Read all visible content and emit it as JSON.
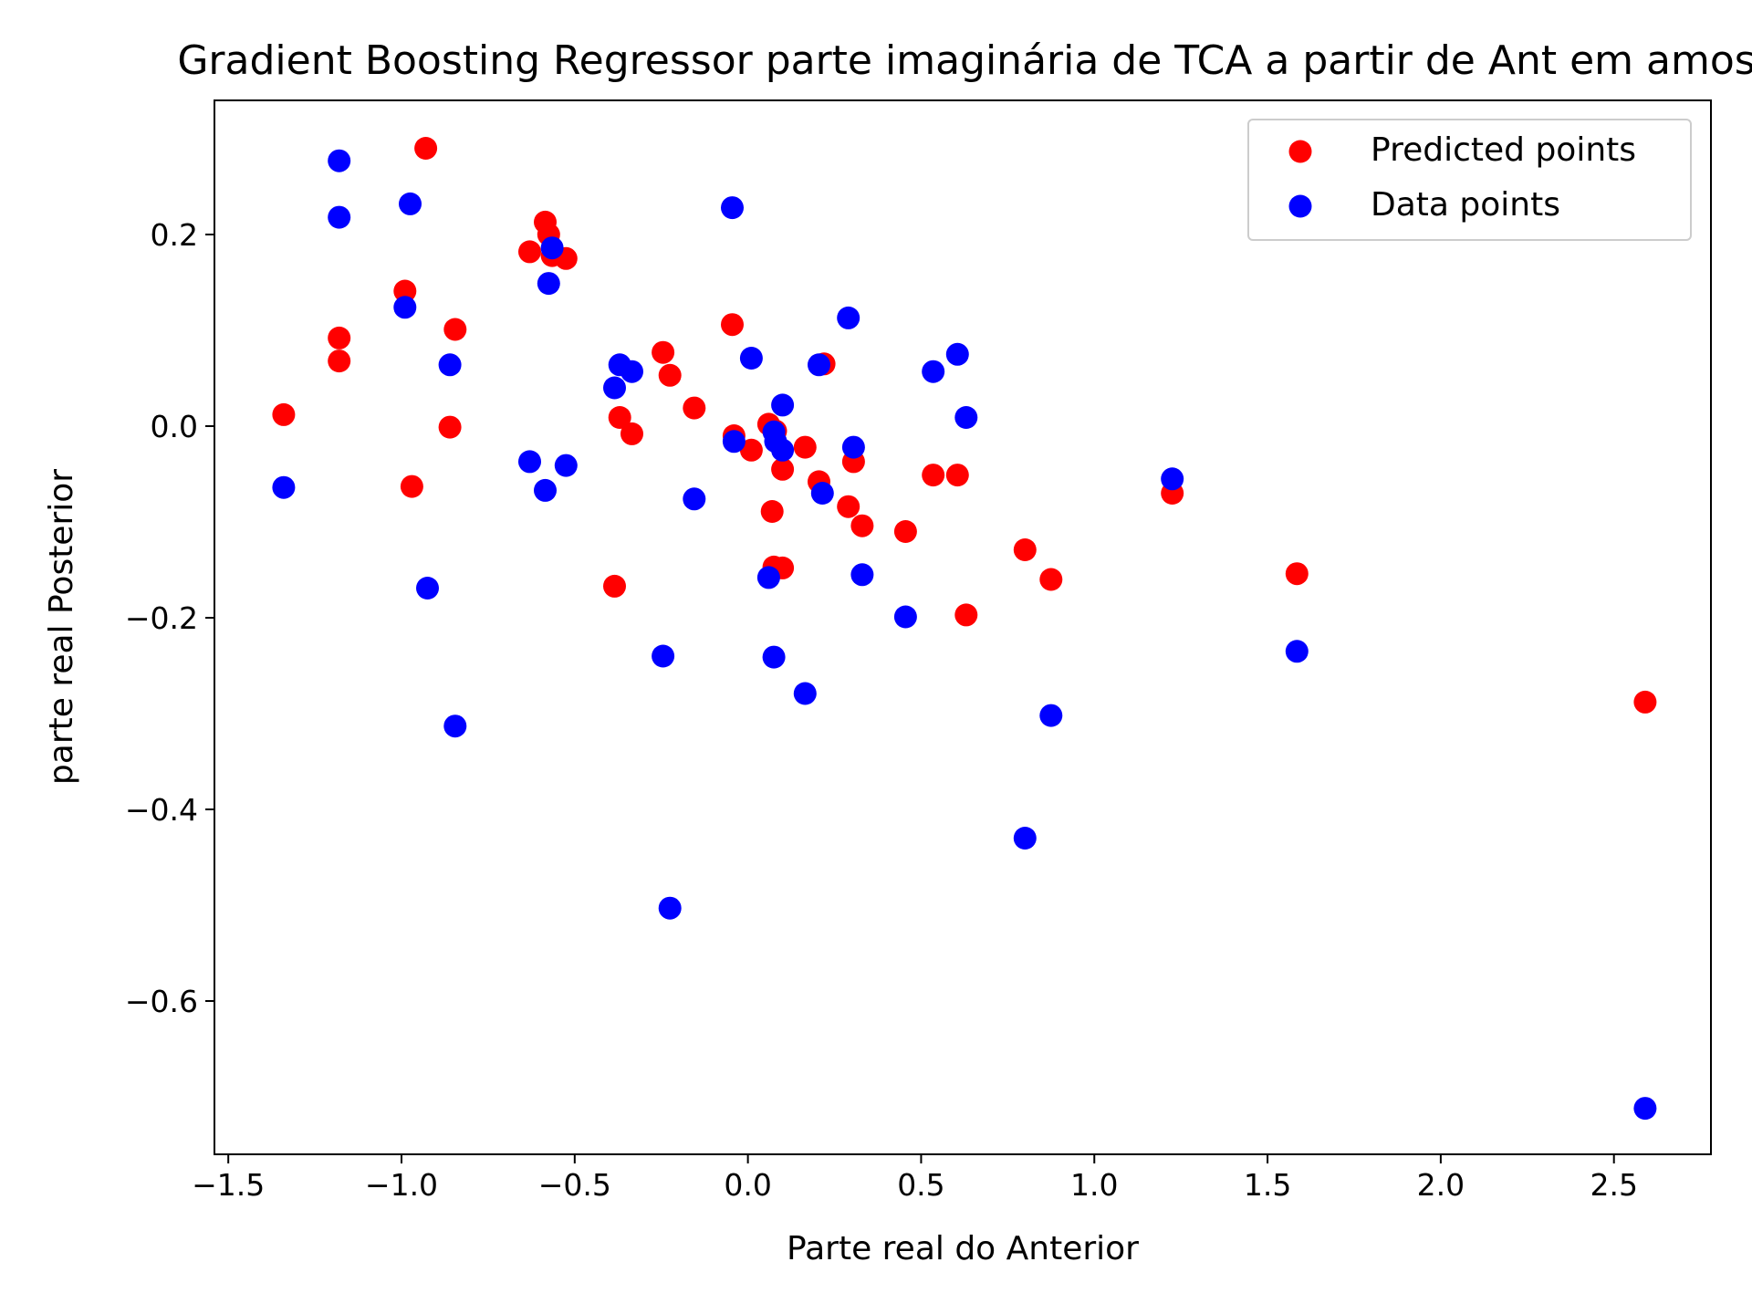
{
  "chart_data": {
    "type": "scatter",
    "title": "Gradient Boosting Regressor parte imaginária de TCA a partir de Ant em amos",
    "xlabel": "Parte real do Anterior",
    "ylabel": "parte real Posterior",
    "xlim": [
      -1.54,
      2.78
    ],
    "ylim": [
      -0.76,
      0.34
    ],
    "xticks": [
      -1.5,
      -1.0,
      -0.5,
      0.0,
      0.5,
      1.0,
      1.5,
      2.0,
      2.5
    ],
    "xtick_labels": [
      "−1.5",
      "−1.0",
      "−0.5",
      "0.0",
      "0.5",
      "1.0",
      "1.5",
      "2.0",
      "2.5"
    ],
    "yticks": [
      0.2,
      0.0,
      -0.2,
      -0.4,
      -0.6
    ],
    "ytick_labels": [
      "0.2",
      "0.0",
      "−0.2",
      "−0.4",
      "−0.6"
    ],
    "grid": false,
    "legend_position": "top-right",
    "series": [
      {
        "name": "Predicted points",
        "color": "#ff0000",
        "points": [
          [
            -1.34,
            0.012
          ],
          [
            -1.18,
            0.092
          ],
          [
            -1.18,
            0.068
          ],
          [
            -0.99,
            0.141
          ],
          [
            -0.97,
            -0.063
          ],
          [
            -0.93,
            0.29
          ],
          [
            -0.86,
            -0.001
          ],
          [
            -0.845,
            0.101
          ],
          [
            -0.63,
            0.182
          ],
          [
            -0.585,
            0.213
          ],
          [
            -0.575,
            0.2
          ],
          [
            -0.565,
            0.178
          ],
          [
            -0.525,
            0.175
          ],
          [
            -0.385,
            -0.167
          ],
          [
            -0.37,
            0.009
          ],
          [
            -0.335,
            -0.008
          ],
          [
            -0.245,
            0.077
          ],
          [
            -0.225,
            0.053
          ],
          [
            -0.155,
            0.019
          ],
          [
            -0.045,
            0.106
          ],
          [
            -0.04,
            -0.01
          ],
          [
            0.01,
            -0.025
          ],
          [
            0.06,
            0.002
          ],
          [
            0.07,
            -0.089
          ],
          [
            0.075,
            -0.147
          ],
          [
            0.08,
            -0.005
          ],
          [
            0.1,
            -0.045
          ],
          [
            0.1,
            -0.148
          ],
          [
            0.165,
            -0.022
          ],
          [
            0.205,
            -0.058
          ],
          [
            0.22,
            0.065
          ],
          [
            0.29,
            -0.084
          ],
          [
            0.305,
            -0.037
          ],
          [
            0.33,
            -0.104
          ],
          [
            0.455,
            -0.11
          ],
          [
            0.535,
            -0.051
          ],
          [
            0.605,
            -0.051
          ],
          [
            0.63,
            -0.197
          ],
          [
            0.8,
            -0.129
          ],
          [
            0.875,
            -0.16
          ],
          [
            1.225,
            -0.07
          ],
          [
            1.585,
            -0.154
          ],
          [
            2.59,
            -0.288
          ]
        ]
      },
      {
        "name": "Data points",
        "color": "#0000ff",
        "points": [
          [
            -1.34,
            -0.064
          ],
          [
            -1.18,
            0.277
          ],
          [
            -1.18,
            0.218
          ],
          [
            -0.99,
            0.124
          ],
          [
            -0.975,
            0.232
          ],
          [
            -0.925,
            -0.169
          ],
          [
            -0.86,
            0.064
          ],
          [
            -0.845,
            -0.313
          ],
          [
            -0.63,
            -0.037
          ],
          [
            -0.585,
            -0.067
          ],
          [
            -0.575,
            0.149
          ],
          [
            -0.565,
            0.186
          ],
          [
            -0.525,
            -0.041
          ],
          [
            -0.385,
            0.04
          ],
          [
            -0.37,
            0.064
          ],
          [
            -0.335,
            0.057
          ],
          [
            -0.245,
            -0.24
          ],
          [
            -0.225,
            -0.503
          ],
          [
            -0.155,
            -0.076
          ],
          [
            -0.045,
            0.228
          ],
          [
            -0.04,
            -0.016
          ],
          [
            0.01,
            0.071
          ],
          [
            0.06,
            -0.158
          ],
          [
            0.075,
            -0.241
          ],
          [
            0.075,
            -0.006
          ],
          [
            0.08,
            -0.016
          ],
          [
            0.1,
            0.022
          ],
          [
            0.1,
            -0.025
          ],
          [
            0.165,
            -0.279
          ],
          [
            0.205,
            0.064
          ],
          [
            0.215,
            -0.07
          ],
          [
            0.29,
            0.113
          ],
          [
            0.305,
            -0.022
          ],
          [
            0.33,
            -0.155
          ],
          [
            0.455,
            -0.199
          ],
          [
            0.535,
            0.057
          ],
          [
            0.605,
            0.075
          ],
          [
            0.63,
            0.009
          ],
          [
            0.8,
            -0.43
          ],
          [
            0.875,
            -0.302
          ],
          [
            1.225,
            -0.055
          ],
          [
            1.585,
            -0.235
          ],
          [
            2.59,
            -0.712
          ]
        ]
      }
    ]
  }
}
